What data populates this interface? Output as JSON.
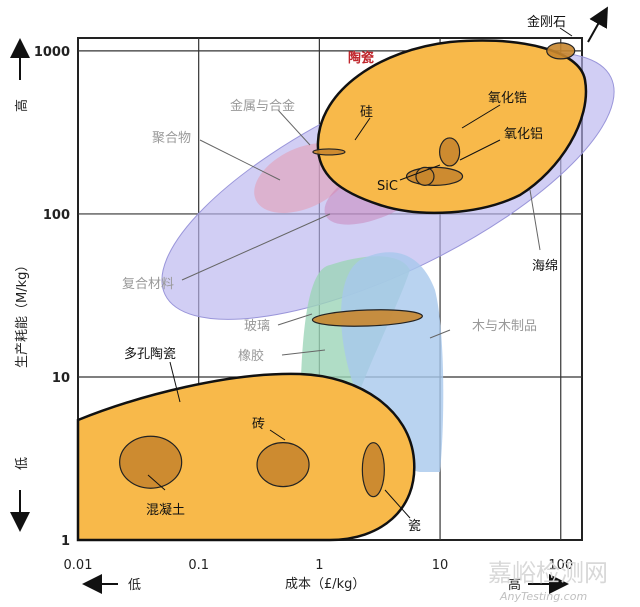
{
  "chart_data": {
    "type": "scatter",
    "title": "",
    "xlabel": "成本（£/kg）",
    "ylabel": "生产耗能（M/kg）",
    "x_scale": "log",
    "y_scale": "log",
    "xlim": [
      0.01,
      150
    ],
    "ylim": [
      1,
      1200
    ],
    "x_ticks": [
      {
        "value": 0.01,
        "label": "0.01"
      },
      {
        "value": 0.1,
        "label": "0.1"
      },
      {
        "value": 1,
        "label": "1"
      },
      {
        "value": 10,
        "label": "10"
      },
      {
        "value": 100,
        "label": "100"
      }
    ],
    "y_ticks": [
      {
        "value": 1,
        "label": "1"
      },
      {
        "value": 10,
        "label": "10"
      },
      {
        "value": 100,
        "label": "100"
      },
      {
        "value": 1000,
        "label": "1000"
      }
    ],
    "x_low_label": "低",
    "x_high_label": "高",
    "y_low_label": "低",
    "y_high_label": "高",
    "grid": true,
    "regions": [
      {
        "name": "陶瓷",
        "x_range": [
          1,
          70
        ],
        "y_range": [
          95,
          950
        ],
        "color": "#f8b94a"
      },
      {
        "name": "多孔陶瓷",
        "x_range": [
          0.01,
          5
        ],
        "y_range": [
          1,
          9.5
        ],
        "color": "#f8b94a"
      },
      {
        "name": "复合材料",
        "x_range": [
          0.1,
          100
        ],
        "y_range": [
          20,
          900
        ],
        "color": "#b8b4ee"
      },
      {
        "name": "木与木制品",
        "x_range": [
          1.5,
          10
        ],
        "y_range": [
          6,
          50
        ],
        "color": "#a8c8ec"
      },
      {
        "name": "橡胶",
        "x_range": [
          0.9,
          8
        ],
        "y_range": [
          5,
          70
        ],
        "color": "#9cd4b8"
      }
    ],
    "points": [
      {
        "name": "金刚石",
        "x": 100,
        "y": 1000
      },
      {
        "name": "硅",
        "x": 1.2,
        "y": 240
      },
      {
        "name": "氧化锆",
        "x": 12,
        "y": 240
      },
      {
        "name": "氧化铝",
        "x": 9,
        "y": 170
      },
      {
        "name": "SiC",
        "x": 7.5,
        "y": 170
      },
      {
        "name": "玻璃",
        "x": 2.5,
        "y": 23
      },
      {
        "name": "混凝土",
        "x": 0.04,
        "y": 3
      },
      {
        "name": "砖",
        "x": 0.5,
        "y": 2.9
      },
      {
        "name": "瓷",
        "x": 2.8,
        "y": 2.7
      }
    ],
    "labels": {
      "ceramic": "陶瓷",
      "metal": "金属与合金",
      "polymer": "聚合物",
      "si": "硅",
      "zirconia": "氧化锆",
      "alumina": "氧化铝",
      "sic": "SiC",
      "diamond": "金刚石",
      "foam": "海绵",
      "composite": "复合材料",
      "glass": "玻璃",
      "wood": "木与木制品",
      "rubber": "橡胶",
      "porous": "多孔陶瓷",
      "brick": "砖",
      "concrete": "混凝土",
      "porcelain": "瓷"
    }
  },
  "watermark": {
    "text": "嘉峪检测网",
    "sub": "AnyTesting.com"
  },
  "colors": {
    "ceramic": "#f8b94a",
    "dot": "#c8862e",
    "composite": "#b8b4ee",
    "accent_red": "#c0272d"
  }
}
